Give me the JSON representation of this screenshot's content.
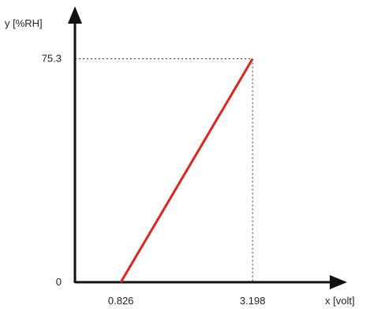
{
  "colors": {
    "axis": "#111111",
    "line": "#e0241b",
    "guide": "#333333"
  },
  "chart_data": {
    "type": "line",
    "title": "",
    "xlabel": "x [volt]",
    "ylabel": "y [%RH]",
    "series": [
      {
        "x": [
          0.826,
          3.198
        ],
        "y": [
          0,
          75.3
        ]
      }
    ],
    "x_ticks": [
      "0.826",
      "3.198"
    ],
    "y_ticks": [
      "0",
      "75.3"
    ],
    "xlim": [
      0.0,
      4.9
    ],
    "ylim": [
      0,
      93
    ],
    "grid": false,
    "legend": "none"
  }
}
